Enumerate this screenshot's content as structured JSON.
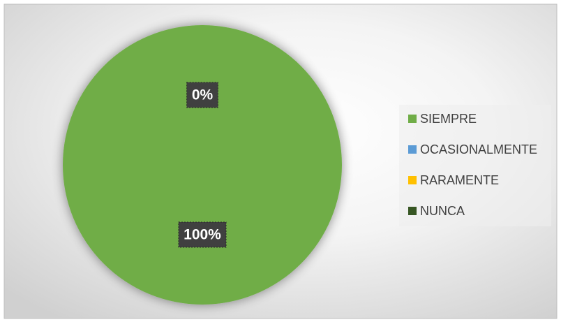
{
  "chart_data": {
    "type": "pie",
    "categories": [
      "SIEMPRE",
      "OCASIONALMENTE",
      "RARAMENTE",
      "NUNCA"
    ],
    "values": [
      100,
      0,
      0,
      0
    ],
    "value_labels": [
      "100%",
      "0%",
      null,
      null
    ],
    "colors": [
      "#70ad47",
      "#5b9bd5",
      "#ffc000",
      "#375623"
    ],
    "legend": "right"
  }
}
